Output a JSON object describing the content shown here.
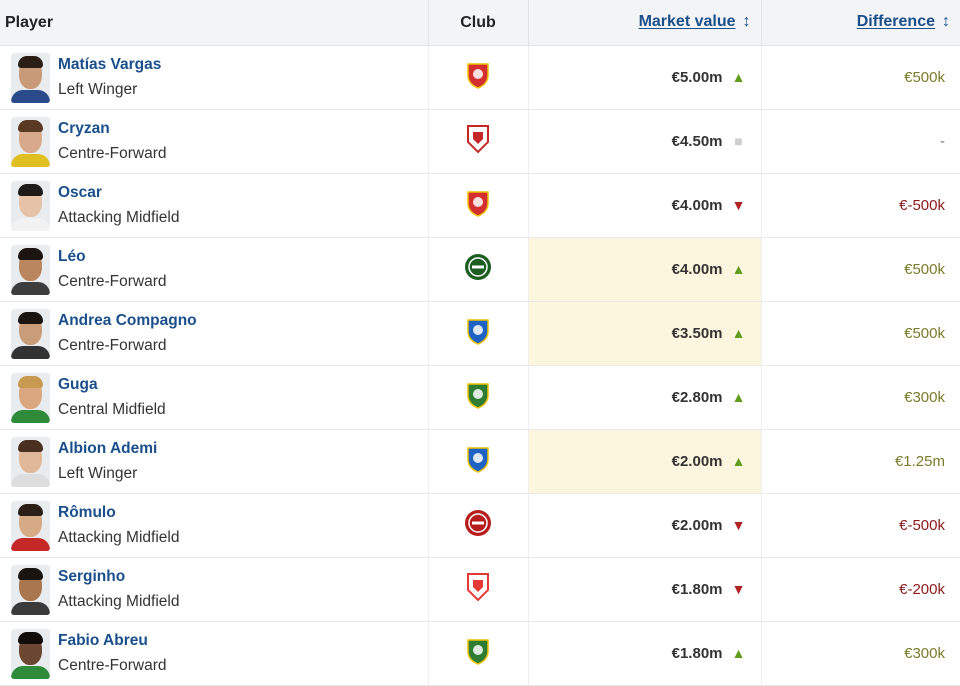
{
  "headers": {
    "player": "Player",
    "club": "Club",
    "market_value": "Market value",
    "difference": "Difference",
    "sort_icon": "↕"
  },
  "colors": {
    "link": "#1a4f8b",
    "highlight": "#fdf6de",
    "up": "#5f9e1f",
    "down": "#b22222",
    "positive": "#7a7a2a",
    "negative": "#8b1a1a"
  },
  "rows": [
    {
      "name": "Matías Vargas",
      "position": "Left Winger",
      "club_crest": "red-shield-crest",
      "value": "€5.00m",
      "trend": "up",
      "trend_icon": "▲",
      "difference": "€500k",
      "diff_sign": "pos",
      "highlight": false,
      "skin": "#c89a78",
      "hair": "#2b1e16",
      "shirt": "#2a4a8a",
      "crest_color": "#d32f2f",
      "crest_shape": "shield"
    },
    {
      "name": "Cryzan",
      "position": "Centre-Forward",
      "club_crest": "white-red-shield-crest",
      "value": "€4.50m",
      "trend": "same",
      "trend_icon": "■",
      "difference": "-",
      "diff_sign": "neu",
      "highlight": false,
      "skin": "#d8a98a",
      "hair": "#5a3a22",
      "shirt": "#e0c020",
      "crest_color": "#c62828",
      "crest_shape": "pennant"
    },
    {
      "name": "Oscar",
      "position": "Attacking Midfield",
      "club_crest": "red-shield-crest",
      "value": "€4.00m",
      "trend": "down",
      "trend_icon": "▼",
      "difference": "€-500k",
      "diff_sign": "neg",
      "highlight": false,
      "skin": "#e6c2a6",
      "hair": "#1e1a18",
      "shirt": "#f2f2f2",
      "crest_color": "#d32f2f",
      "crest_shape": "shield"
    },
    {
      "name": "Léo",
      "position": "Centre-Forward",
      "club_crest": "green-round-crest",
      "value": "€4.00m",
      "trend": "up",
      "trend_icon": "▲",
      "difference": "€500k",
      "diff_sign": "pos",
      "highlight": true,
      "skin": "#b9865f",
      "hair": "#1c1410",
      "shirt": "#3d3d3d",
      "crest_color": "#1b5e20",
      "crest_shape": "circle"
    },
    {
      "name": "Andrea Compagno",
      "position": "Centre-Forward",
      "club_crest": "blue-white-shield-crest",
      "value": "€3.50m",
      "trend": "up",
      "trend_icon": "▲",
      "difference": "€500k",
      "diff_sign": "pos",
      "highlight": true,
      "skin": "#c99c7a",
      "hair": "#1a1410",
      "shirt": "#333333",
      "crest_color": "#1e63c4",
      "crest_shape": "shield"
    },
    {
      "name": "Guga",
      "position": "Central Midfield",
      "club_crest": "green-yellow-shield-crest",
      "value": "€2.80m",
      "trend": "up",
      "trend_icon": "▲",
      "difference": "€300k",
      "diff_sign": "pos",
      "highlight": false,
      "skin": "#d9a780",
      "hair": "#c79a52",
      "shirt": "#2e8b3a",
      "crest_color": "#2e7d32",
      "crest_shape": "shield"
    },
    {
      "name": "Albion Ademi",
      "position": "Left Winger",
      "club_crest": "blue-white-shield-crest",
      "value": "€2.00m",
      "trend": "up",
      "trend_icon": "▲",
      "difference": "€1.25m",
      "diff_sign": "pos",
      "highlight": true,
      "skin": "#e0b898",
      "hair": "#4a3020",
      "shirt": "#dddddd",
      "crest_color": "#1e63c4",
      "crest_shape": "shield"
    },
    {
      "name": "Rômulo",
      "position": "Attacking Midfield",
      "club_crest": "red-round-crest",
      "value": "€2.00m",
      "trend": "down",
      "trend_icon": "▼",
      "difference": "€-500k",
      "diff_sign": "neg",
      "highlight": false,
      "skin": "#d7aa86",
      "hair": "#2a1e16",
      "shirt": "#c62828",
      "crest_color": "#b71c1c",
      "crest_shape": "circle"
    },
    {
      "name": "Serginho",
      "position": "Attacking Midfield",
      "club_crest": "red-yellow-shield-crest",
      "value": "€1.80m",
      "trend": "down",
      "trend_icon": "▼",
      "difference": "€-200k",
      "diff_sign": "neg",
      "highlight": false,
      "skin": "#a8764f",
      "hair": "#1a1410",
      "shirt": "#3a3a3a",
      "crest_color": "#e53935",
      "crest_shape": "pennant"
    },
    {
      "name": "Fabio Abreu",
      "position": "Centre-Forward",
      "club_crest": "green-yellow-shield-crest",
      "value": "€1.80m",
      "trend": "up",
      "trend_icon": "▲",
      "difference": "€300k",
      "diff_sign": "pos",
      "highlight": false,
      "skin": "#6b4630",
      "hair": "#120c08",
      "shirt": "#2e8b3a",
      "crest_color": "#2e7d32",
      "crest_shape": "shield"
    }
  ]
}
